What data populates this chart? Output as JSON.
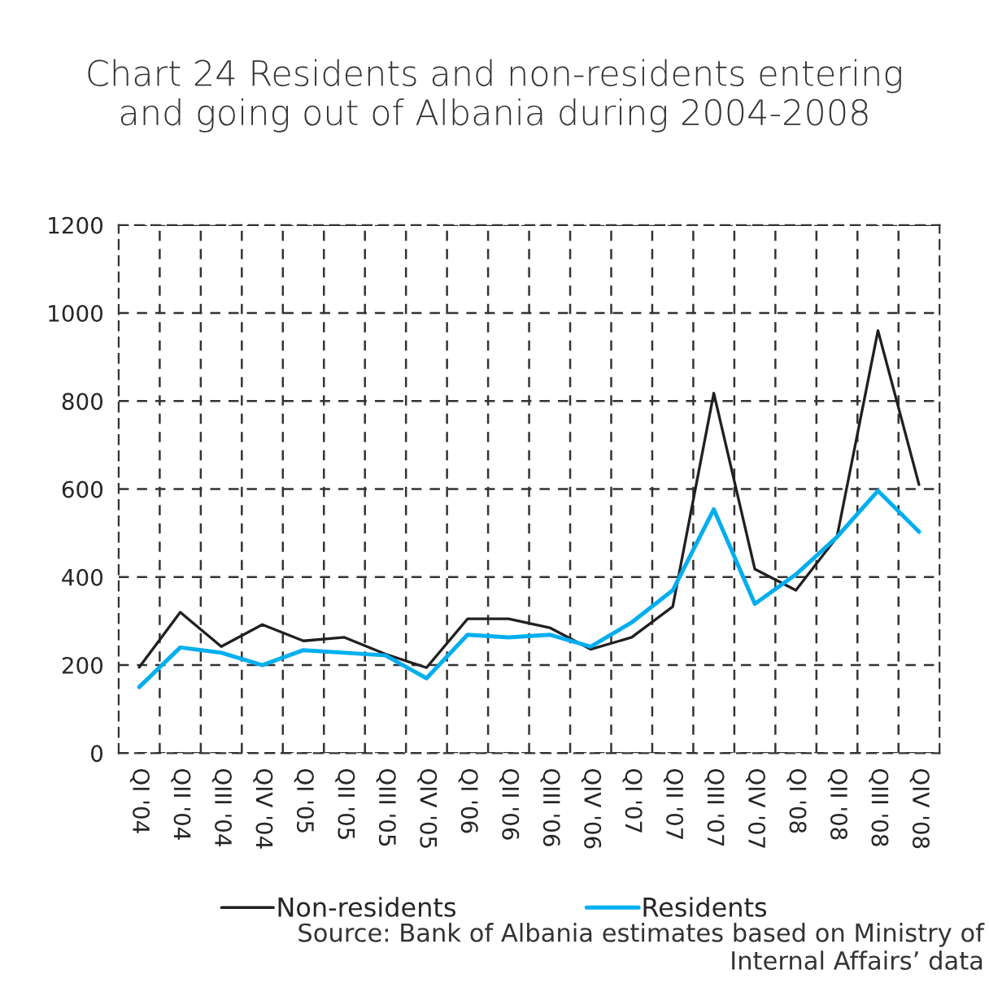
{
  "chart_data": {
    "type": "line",
    "title": "Chart 24 Residents and non-residents entering\nand going out of Albania during 2004-2008",
    "categories": [
      "QI '04",
      "QII '04",
      "QIII '04",
      "QIV '04",
      "QI '05",
      "QII '05",
      "QIII '05",
      "QIV '05",
      "QI '06",
      "QII '06",
      "QIII '06",
      "QIV '06",
      "QI '07",
      "QII '07",
      "QIII '07",
      "QIV '07",
      "QI '08",
      "QII '08",
      "QIII '08",
      "QIV '08"
    ],
    "series": [
      {
        "name": "Non-residents",
        "color": "#231f20",
        "values": [
          195,
          320,
          242,
          292,
          255,
          263,
          225,
          194,
          305,
          305,
          285,
          236,
          263,
          333,
          818,
          418,
          370,
          491,
          960,
          610
        ]
      },
      {
        "name": "Residents",
        "color": "#00aeef",
        "values": [
          150,
          240,
          228,
          200,
          234,
          228,
          222,
          170,
          269,
          263,
          269,
          242,
          297,
          370,
          554,
          339,
          406,
          491,
          596,
          503
        ]
      }
    ],
    "ylim": [
      0,
      1200
    ],
    "yticks": [
      0,
      200,
      400,
      600,
      800,
      1000,
      1200
    ],
    "grid": true,
    "legend": "bottom",
    "marker": "none",
    "line_style": "solid",
    "annotations": [
      "Source: Bank of Albania estimates based on Ministry of\nInternal Affairs’ data"
    ]
  }
}
